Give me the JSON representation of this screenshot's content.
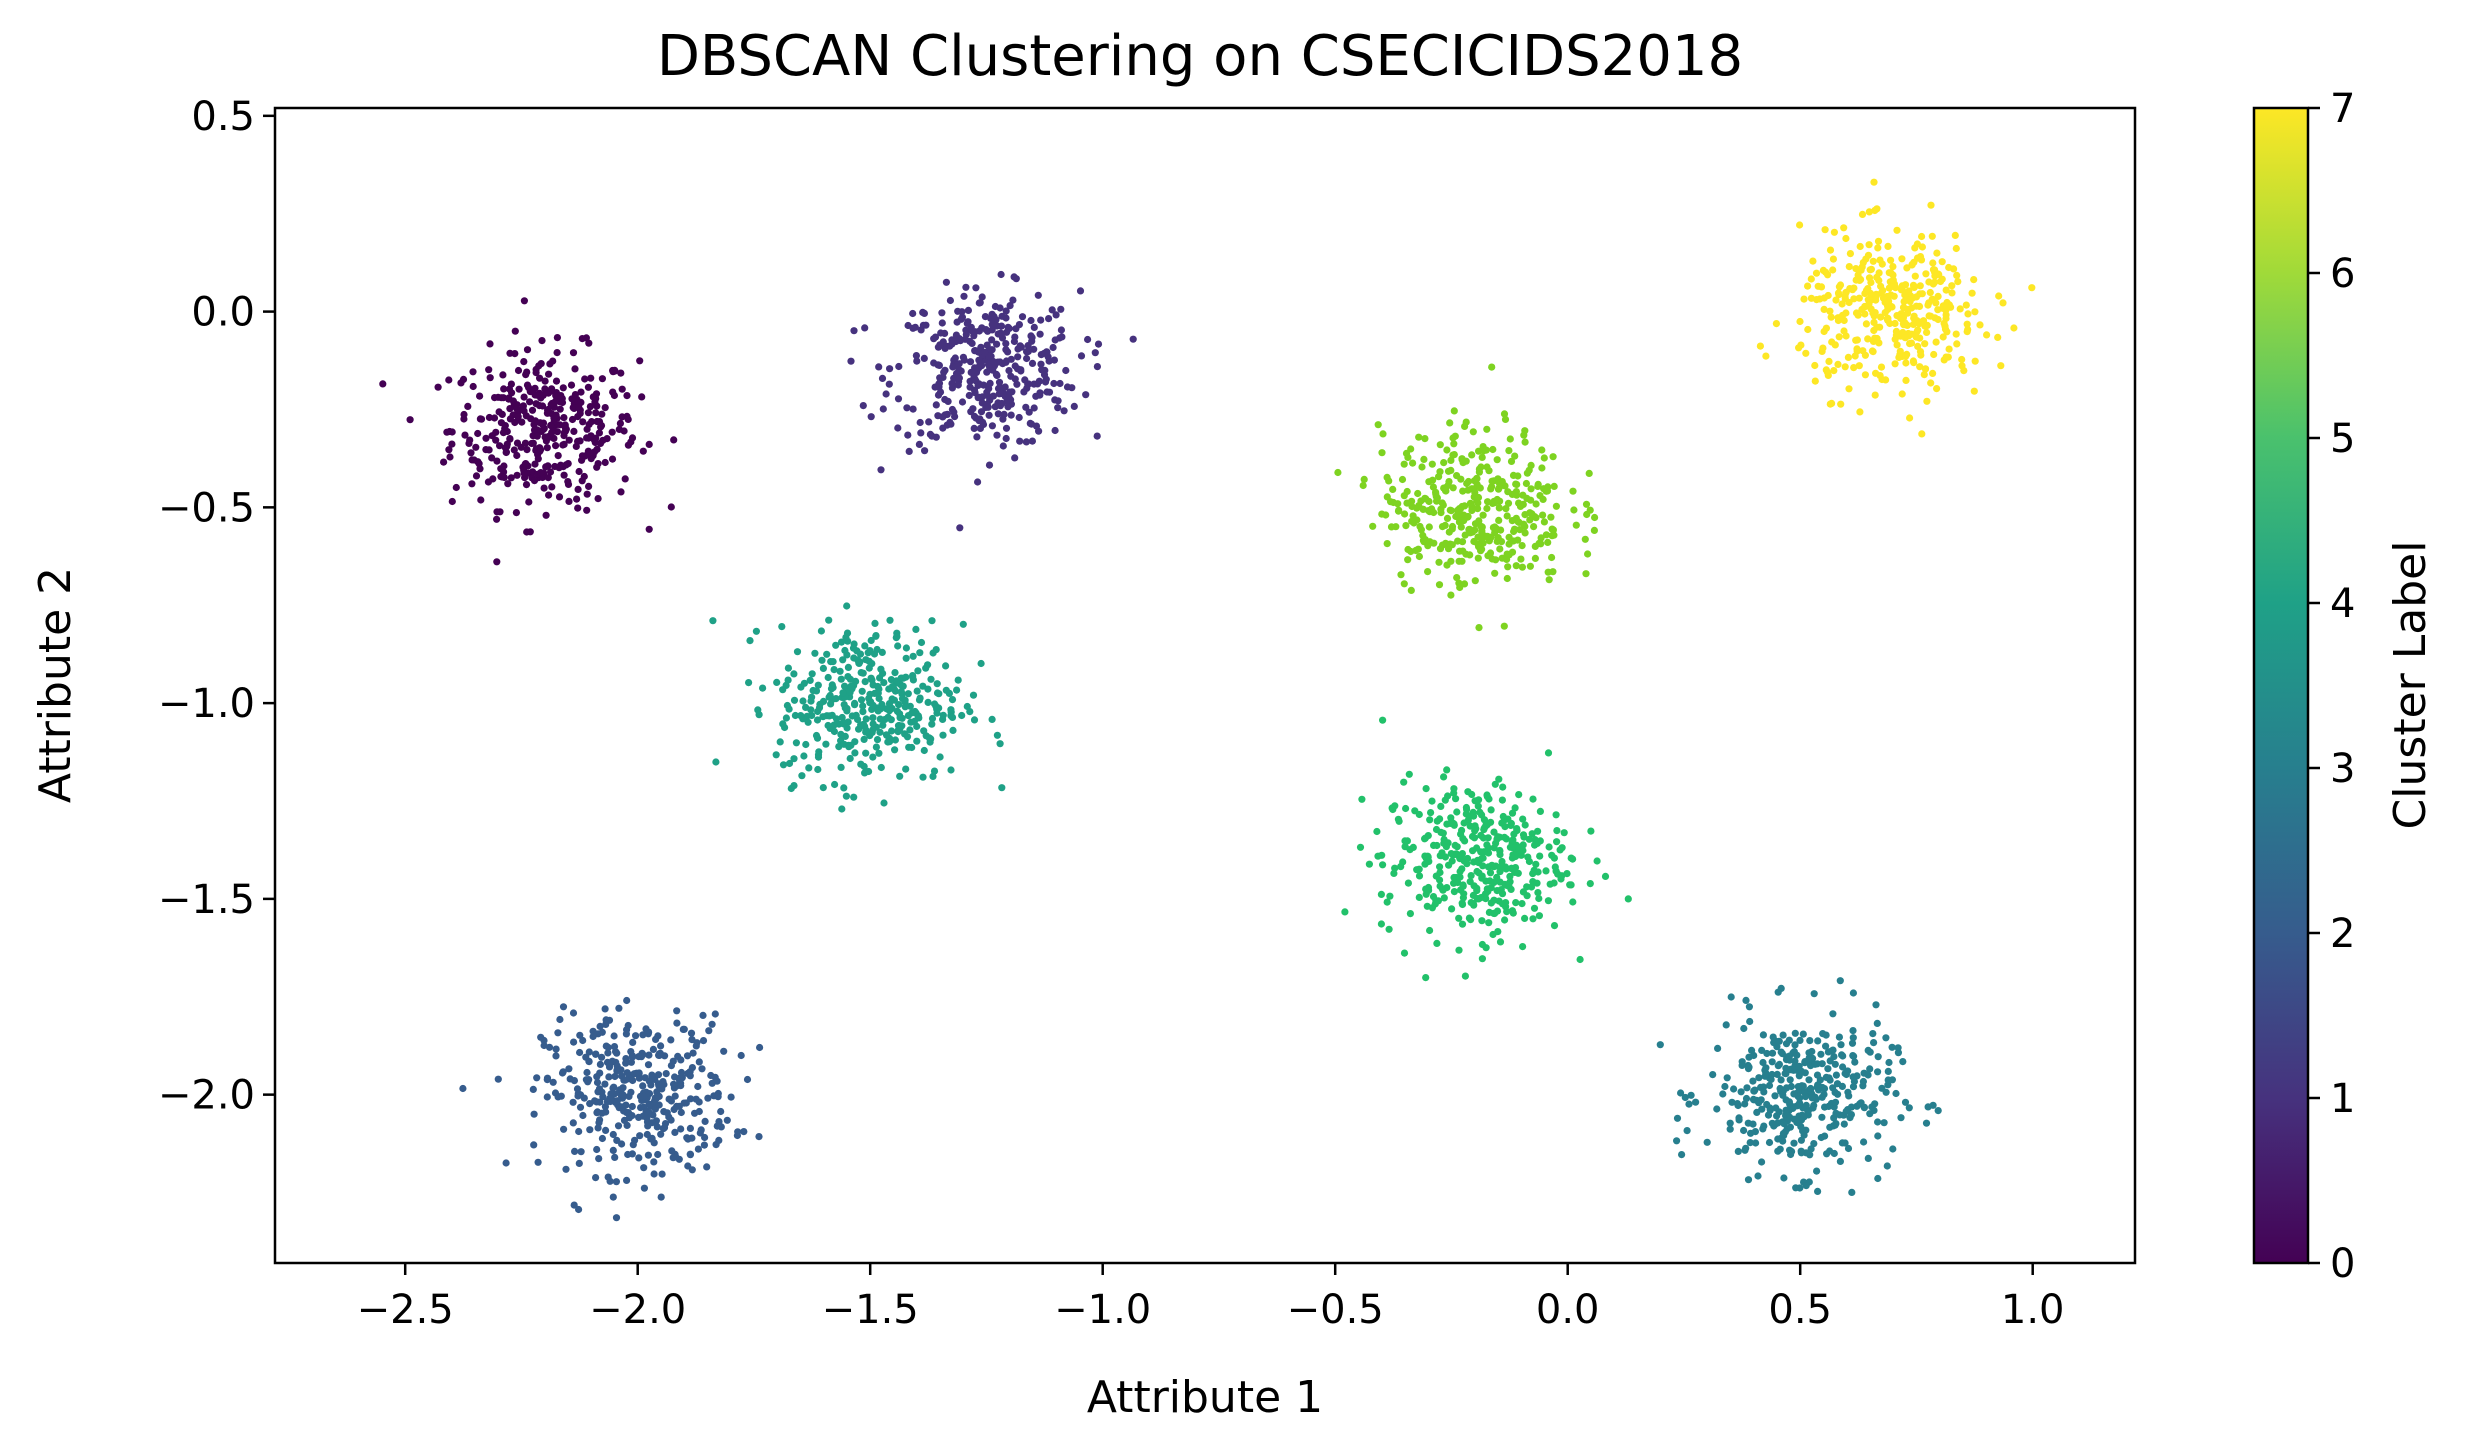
{
  "chart_data": {
    "type": "scatter",
    "title": "DBSCAN Clustering on CSECICIDS2018",
    "xlabel": "Attribute 1",
    "ylabel": "Attribute 2",
    "xlim": [
      -2.78,
      1.22
    ],
    "ylim": [
      -2.43,
      0.52
    ],
    "xticks": [
      -2.5,
      -2.0,
      -1.5,
      -1.0,
      -0.5,
      0.0,
      0.5,
      1.0
    ],
    "xtick_labels": [
      "−2.5",
      "−2.0",
      "−1.5",
      "−1.0",
      "−0.5",
      "0.0",
      "0.5",
      "1.0"
    ],
    "yticks": [
      0.5,
      0.0,
      -0.5,
      -1.0,
      -1.5,
      -2.0
    ],
    "ytick_labels": [
      "0.5",
      "0.0",
      "−0.5",
      "−1.0",
      "−1.5",
      "−2.0"
    ],
    "grid": false,
    "colorbar": {
      "label": "Cluster Label",
      "range": [
        0,
        7
      ],
      "ticks": [
        0,
        1,
        2,
        3,
        4,
        5,
        6,
        7
      ],
      "tick_labels": [
        "0",
        "1",
        "2",
        "3",
        "4",
        "5",
        "6",
        "7"
      ],
      "colormap": "viridis",
      "stops": [
        "#440154",
        "#46327e",
        "#365c8d",
        "#277f8e",
        "#1fa187",
        "#4ac16d",
        "#a0da39",
        "#fde725"
      ]
    },
    "series": [
      {
        "name": "0",
        "label": 0,
        "center": [
          -2.2,
          -0.3
        ],
        "spread": 0.1,
        "n": 380,
        "color": "#440154"
      },
      {
        "name": "1",
        "label": 1,
        "center": [
          -1.25,
          -0.15
        ],
        "spread": 0.1,
        "n": 380,
        "color": "#46327e"
      },
      {
        "name": "2",
        "label": 2,
        "center": [
          -2.0,
          -2.0
        ],
        "spread": 0.1,
        "n": 380,
        "color": "#365c8d"
      },
      {
        "name": "3",
        "label": 3,
        "center": [
          0.5,
          -2.0
        ],
        "spread": 0.1,
        "n": 380,
        "color": "#277f8e"
      },
      {
        "name": "4",
        "label": 4,
        "center": [
          -1.5,
          -1.0
        ],
        "spread": 0.1,
        "n": 380,
        "color": "#1fa187"
      },
      {
        "name": "5",
        "label": 5,
        "center": [
          -0.2,
          -1.4
        ],
        "spread": 0.1,
        "n": 380,
        "color": "#22c16a"
      },
      {
        "name": "6",
        "label": 6,
        "center": [
          -0.2,
          -0.5
        ],
        "spread": 0.1,
        "n": 380,
        "color": "#7ed321"
      },
      {
        "name": "7",
        "label": 7,
        "center": [
          0.7,
          0.0
        ],
        "spread": 0.1,
        "n": 380,
        "color": "#fde725"
      }
    ]
  }
}
